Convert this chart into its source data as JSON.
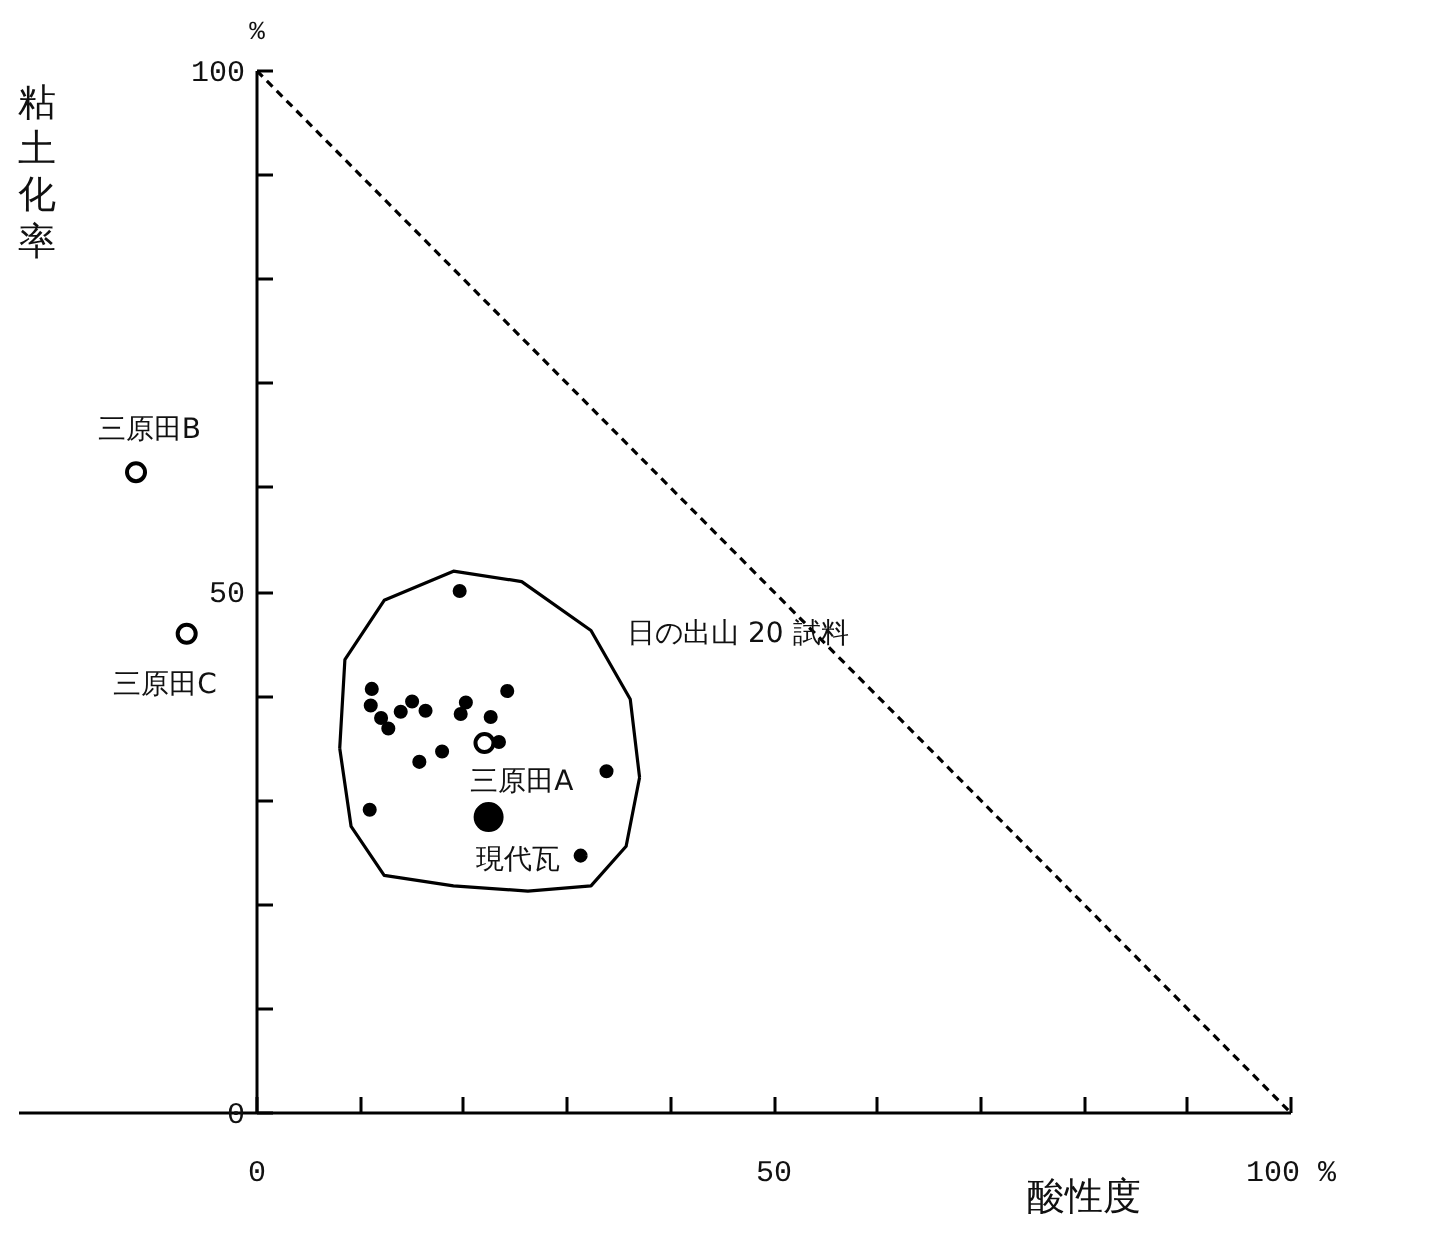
{
  "chart_data": {
    "type": "scatter",
    "xlabel": "酸性度",
    "ylabel": "粘土化率",
    "xlim": [
      -23,
      100
    ],
    "ylim": [
      0,
      100
    ],
    "xticks": [
      0,
      {
        "value": 10,
        "label": null
      },
      {
        "value": 20,
        "label": null
      },
      {
        "value": 30,
        "label": null
      },
      {
        "value": 40,
        "label": null
      },
      50,
      {
        "value": 60,
        "label": null
      },
      {
        "value": 70,
        "label": null
      },
      {
        "value": 80,
        "label": null
      },
      {
        "value": 90,
        "label": null
      },
      {
        "value": 100,
        "label": "100 %"
      }
    ],
    "yticks": [
      0,
      {
        "value": 10,
        "label": null
      },
      {
        "value": 20,
        "label": null
      },
      {
        "value": 30,
        "label": null
      },
      {
        "value": 40,
        "label": null
      },
      50,
      {
        "value": 60,
        "label": null
      },
      {
        "value": 70,
        "label": null
      },
      {
        "value": 80,
        "label": null
      },
      {
        "value": 90,
        "label": null
      },
      100
    ],
    "grid": false,
    "series": [
      {
        "color": "#000000",
        "sizes": [
          0.15,
          0.15,
          0.15,
          0.15,
          0.15,
          0.15,
          0.15,
          0.15,
          0.15,
          0.15,
          0.15,
          0.15,
          0.15,
          0.15,
          0.15,
          0.15,
          0.15,
          0.15
        ],
        "x": [
          19.6,
          11.1,
          11.0,
          12.0,
          12.7,
          13.9,
          15.0,
          16.3,
          20.2,
          19.7,
          22.6,
          24.2,
          17.9,
          15.7,
          23.4,
          33.8,
          10.9,
          31.3
        ],
        "values": [
          50.1,
          40.7,
          39.1,
          37.9,
          36.9,
          38.5,
          39.5,
          38.6,
          39.4,
          38.3,
          38.0,
          40.5,
          34.7,
          33.7,
          35.6,
          32.8,
          29.1,
          24.7
        ]
      },
      {
        "color": "#ffffff",
        "sizes": [
          0.48,
          0.48,
          0.48
        ],
        "x": [
          22.0,
          -11.7,
          -6.8
        ],
        "values": [
          35.5,
          61.5,
          46.0
        ]
      },
      {
        "color": "#000000",
        "sizes": [
          1
        ],
        "x": [
          22.4
        ],
        "values": [
          28.4
        ]
      },
      {
        "type": "line",
        "color": "#000000",
        "line_style": "dashed",
        "x": [
          0,
          100
        ],
        "values": [
          100,
          0
        ]
      },
      {
        "type": "line",
        "color": "#000000",
        "line_style": "solid",
        "x": [
          8.0,
          9.1,
          12.3,
          19.0,
          26.2,
          32.3,
          35.7,
          37.0,
          null,
          8.0,
          8.5,
          12.3,
          19.0,
          25.6,
          32.3,
          36.1,
          37.0
        ],
        "values": [
          35.0,
          27.5,
          22.8,
          21.8,
          21.3,
          21.8,
          25.6,
          32.2,
          null,
          35.0,
          43.5,
          49.2,
          52.0,
          51.0,
          46.3,
          39.7,
          32.2
        ]
      }
    ],
    "annotations": [
      "%",
      "三原田B",
      "三原田C",
      "三原田A",
      "現代瓦",
      "日の出山 20 試料"
    ]
  }
}
